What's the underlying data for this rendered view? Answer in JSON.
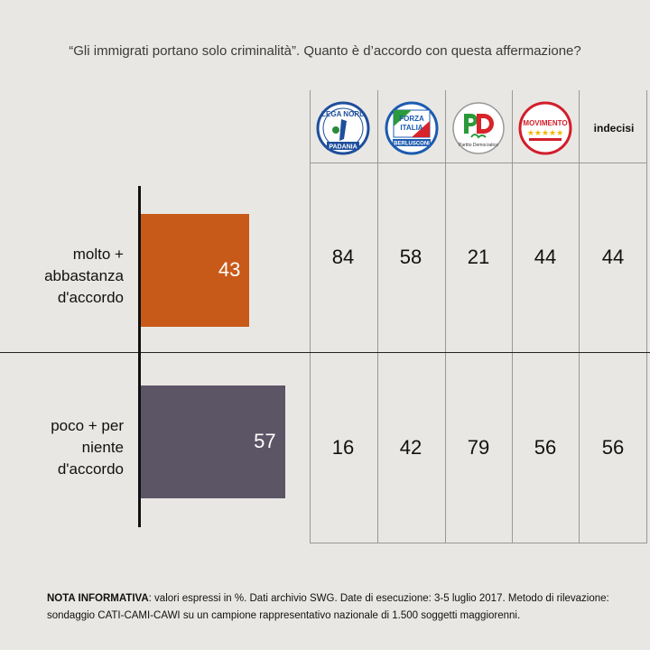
{
  "title": "“Gli immigrati portano solo criminalità”. Quanto è d’accordo con questa affermazione?",
  "chart_data": {
    "type": "bar",
    "orientation": "horizontal",
    "categories": [
      "molto + abbastanza d'accordo",
      "poco + per niente d'accordo"
    ],
    "values": [
      43,
      57
    ],
    "colors": [
      "#c85a19",
      "#5c5566"
    ],
    "xlim": [
      0,
      100
    ],
    "table": {
      "columns": [
        "Lega Nord",
        "Forza Italia",
        "PD",
        "Movimento 5 Stelle",
        "indecisi"
      ],
      "rows": [
        {
          "category": "molto + abbastanza d'accordo",
          "values": [
            84,
            58,
            21,
            44,
            44
          ]
        },
        {
          "category": "poco + per niente d'accordo",
          "values": [
            16,
            42,
            79,
            56,
            56
          ]
        }
      ]
    }
  },
  "row_labels": [
    [
      "molto +",
      "abbastanza",
      "d'accordo"
    ],
    [
      "poco + per",
      "niente",
      "d'accordo"
    ]
  ],
  "column_header_text": "indecisi",
  "logos": [
    {
      "name": "lega-nord-logo",
      "text_top": "LEGA NORD",
      "text_bottom": "PADANIA"
    },
    {
      "name": "forza-italia-logo",
      "text_top": "FORZA ITALIA",
      "text_bottom": "BERLUSCONI"
    },
    {
      "name": "pd-logo",
      "text_top": "PD",
      "text_bottom": "Partito Democratico"
    },
    {
      "name": "m5s-logo",
      "text_top": "MOVIMENTO",
      "text_bottom": ""
    }
  ],
  "note_label": "NOTA INFORMATIVA",
  "note_text": ": valori espressi in %. Dati archivio SWG. Date di esecuzione: 3-5 luglio 2017. Metodo di rilevazione: sondaggio CATI-CAMI-CAWI su un campione rappresentativo nazionale di 1.500 soggetti maggiorenni."
}
